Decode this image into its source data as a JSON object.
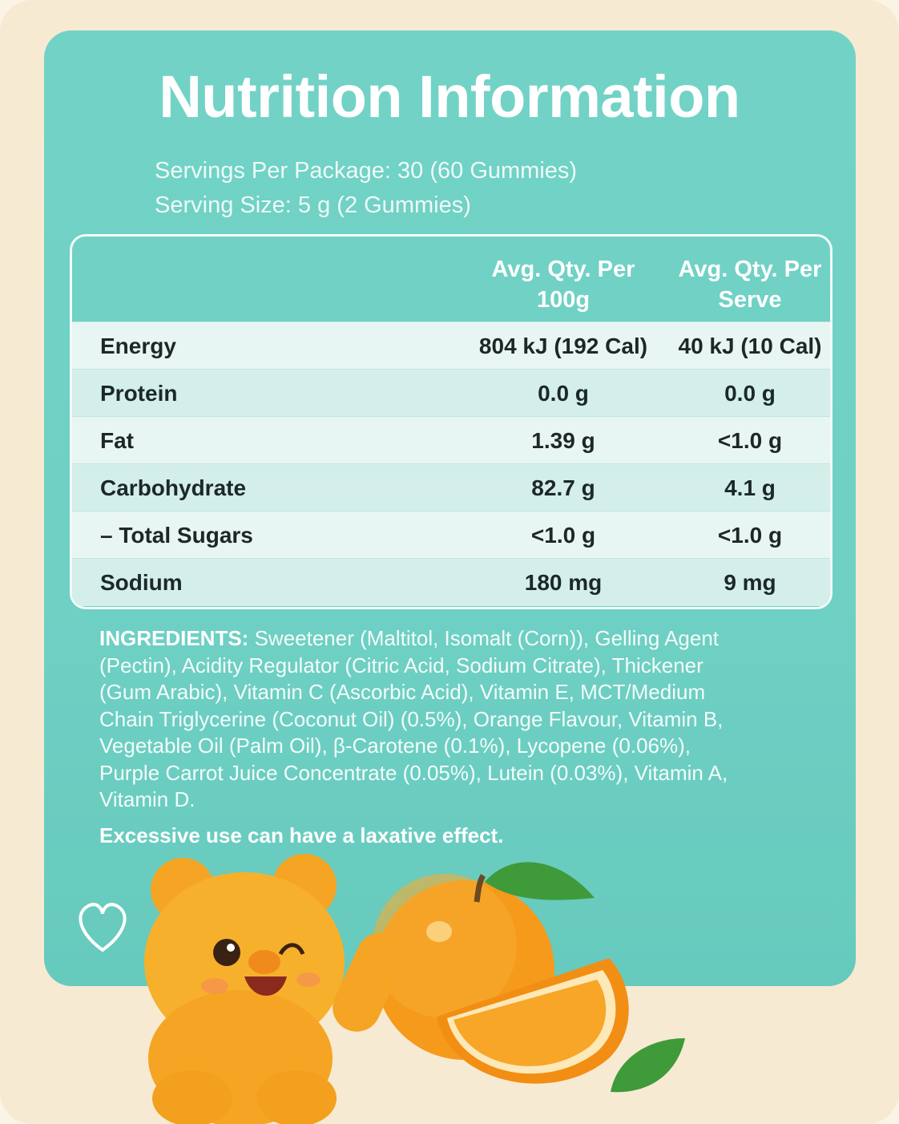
{
  "header": {
    "title": "Nutrition Information",
    "servings_per_package": "Servings Per Package: 30 (60 Gummies)",
    "serving_size": "Serving Size: 5 g (2 Gummies)"
  },
  "table": {
    "columns": [
      "Avg. Qty. Per 100g",
      "Avg. Qty. Per Serve"
    ],
    "rows": [
      [
        "Energy",
        "804 kJ (192 Cal)",
        "40 kJ (10 Cal)"
      ],
      [
        "Protein",
        "0.0 g",
        "0.0 g"
      ],
      [
        "Fat",
        "1.39 g",
        "<1.0 g"
      ],
      [
        "Carbohydrate",
        "82.7 g",
        "4.1 g"
      ],
      [
        "– Total Sugars",
        "<1.0 g",
        "<1.0 g"
      ],
      [
        "Sodium",
        "180 mg",
        "9 mg"
      ]
    ]
  },
  "ingredients": {
    "label": "INGREDIENTS:",
    "text": "Sweetener (Maltitol, Isomalt (Corn)), Gelling Agent (Pectin), Acidity Regulator (Citric Acid, Sodium Citrate), Thickener (Gum Arabic), Vitamin C (Ascorbic Acid), Vitamin E, MCT/Medium Chain Triglycerine (Coconut Oil) (0.5%), Orange Flavour, Vitamin B, Vegetable Oil (Palm Oil), β-Carotene (0.1%), Lycopene (0.06%), Purple Carrot Juice Concentrate (0.05%), Lutein (0.03%), Vitamin A, Vitamin D."
  },
  "warning": "Excessive use can have a laxative effect."
}
